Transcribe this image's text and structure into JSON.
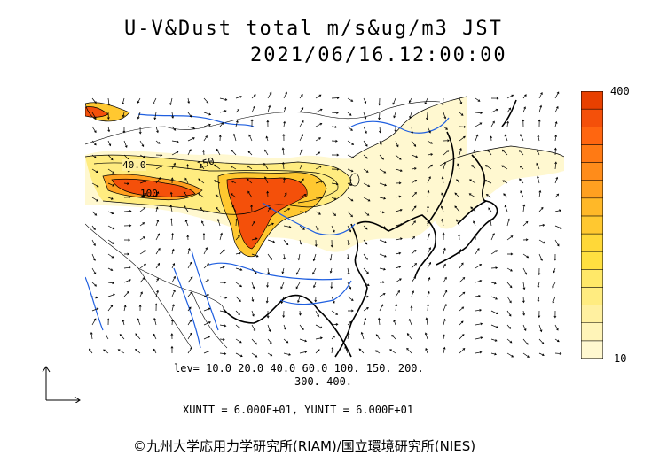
{
  "title_line1": "U-V&Dust total m/s&ug/m3 JST",
  "title_line2": "2021/06/16.12:00:00",
  "colorbar": {
    "max_label": "400",
    "min_label": "10",
    "colors": [
      "#fff8d0",
      "#fff4b8",
      "#fff0a0",
      "#ffec80",
      "#ffe868",
      "#ffe040",
      "#ffd838",
      "#ffc830",
      "#ffb828",
      "#ffa020",
      "#ff8c1a",
      "#ff7a14",
      "#ff6610",
      "#f4500a",
      "#e84000"
    ]
  },
  "contour_labels": [
    "40.0",
    "150",
    "100"
  ],
  "levels_line1": "lev= 10.0 20.0 40.0 60.0 100. 150. 200.",
  "levels_line2": "300. 400.",
  "unit_line": "XUNIT = 6.000E+01, YUNIT = 6.000E+01",
  "credit": "©九州大学応用力学研究所(RIAM)/国立環境研究所(NIES)"
}
